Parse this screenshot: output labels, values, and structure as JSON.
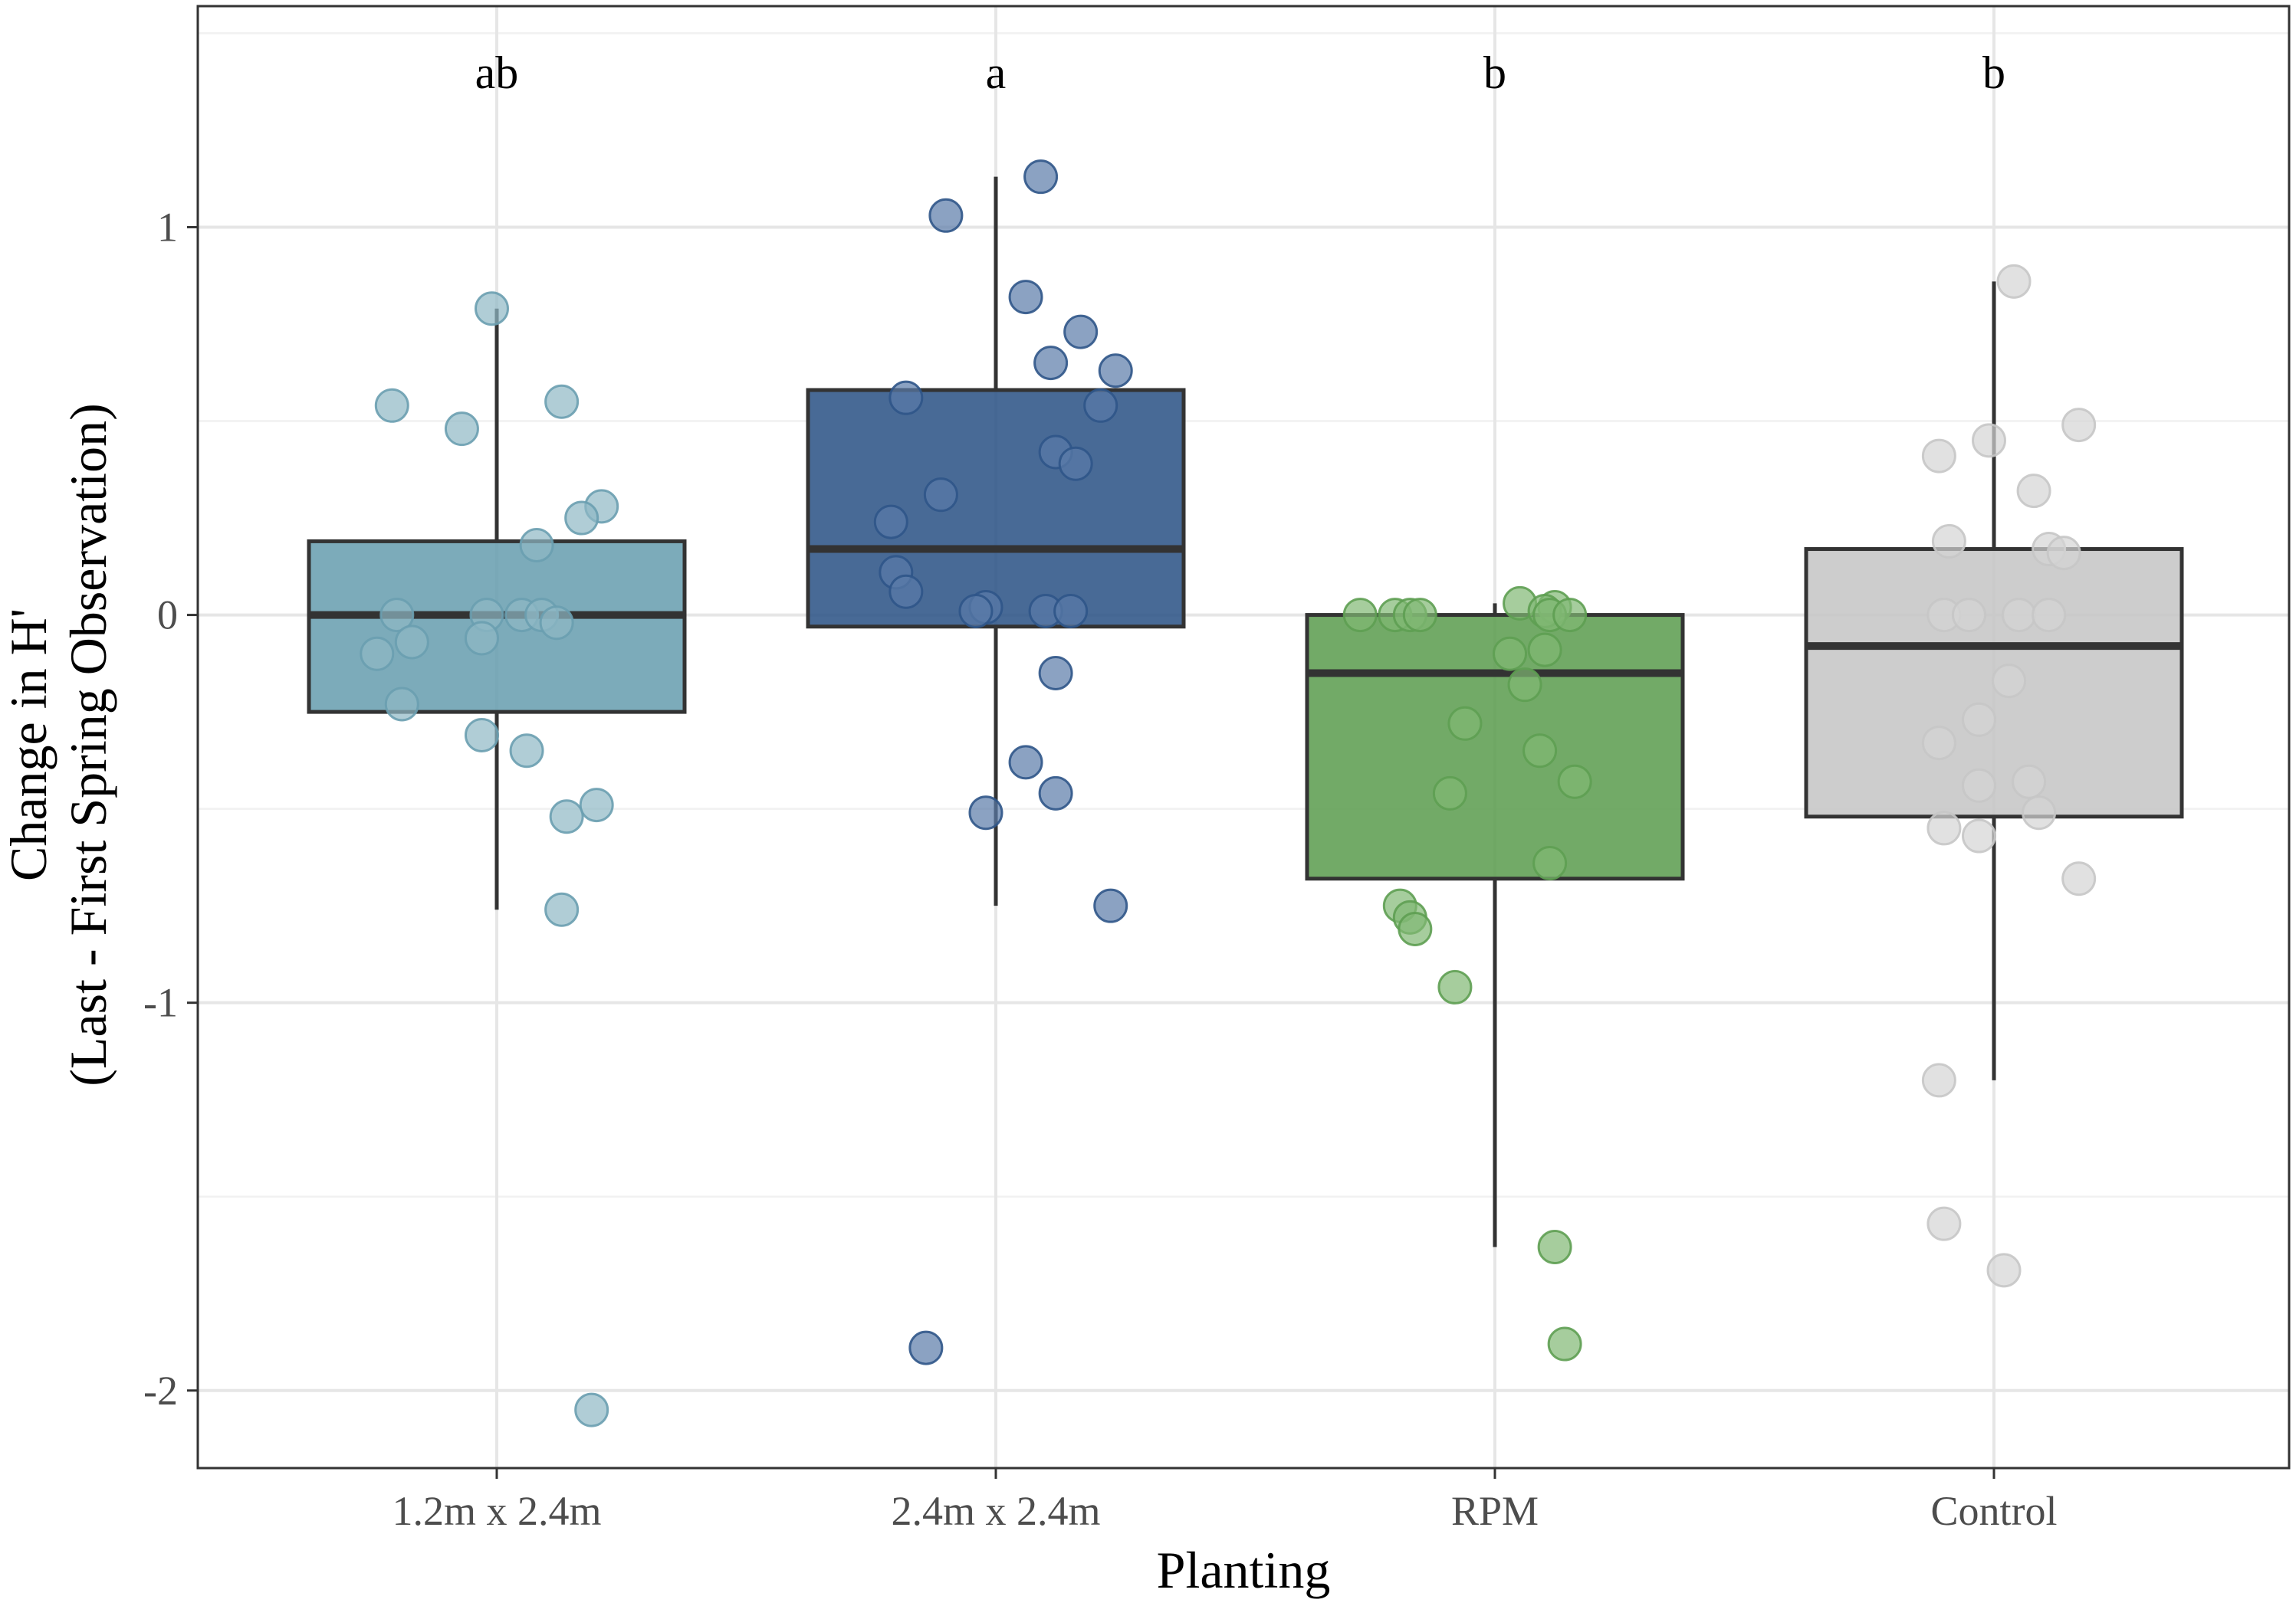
{
  "chart_data": {
    "type": "boxplot",
    "xlabel": "Planting",
    "ylabel_line1": "Change in H'",
    "ylabel_line2": "(Last - First Spring Observation)",
    "ylim": [
      -2.2,
      1.57
    ],
    "yticks": [
      -2,
      -1,
      0,
      1
    ],
    "ytick_labels": [
      "-2",
      "-1",
      "0",
      "1"
    ],
    "grid": true,
    "categories": [
      "1.2m x 2.4m",
      "2.4m x 2.4m",
      "RPM",
      "Control"
    ],
    "significance_letters": [
      "ab",
      "a",
      "b",
      "b"
    ],
    "groups": [
      {
        "name": "1.2m x 2.4m",
        "color": "#6a9fb0",
        "point_color": "#8fb8c5",
        "box": {
          "whisker_low": -0.76,
          "q1": -0.25,
          "median": 0.0,
          "q3": 0.19,
          "whisker_high": 0.79
        },
        "points": [
          {
            "j": -0.01,
            "y": 0.79
          },
          {
            "j": -0.21,
            "y": 0.54
          },
          {
            "j": 0.13,
            "y": 0.55
          },
          {
            "j": -0.07,
            "y": 0.48
          },
          {
            "j": 0.21,
            "y": 0.28
          },
          {
            "j": 0.17,
            "y": 0.25
          },
          {
            "j": 0.08,
            "y": 0.18
          },
          {
            "j": -0.2,
            "y": 0.0
          },
          {
            "j": -0.02,
            "y": 0.0
          },
          {
            "j": 0.05,
            "y": 0.0
          },
          {
            "j": 0.09,
            "y": 0.0
          },
          {
            "j": 0.12,
            "y": -0.02
          },
          {
            "j": -0.17,
            "y": -0.07
          },
          {
            "j": -0.24,
            "y": -0.1
          },
          {
            "j": -0.03,
            "y": -0.06
          },
          {
            "j": -0.19,
            "y": -0.23
          },
          {
            "j": -0.03,
            "y": -0.31
          },
          {
            "j": 0.06,
            "y": -0.35
          },
          {
            "j": 0.2,
            "y": -0.49
          },
          {
            "j": 0.14,
            "y": -0.52
          },
          {
            "j": 0.13,
            "y": -0.76
          },
          {
            "j": 0.19,
            "y": -2.05
          }
        ]
      },
      {
        "name": "2.4m x 2.4m",
        "color": "#2f5588",
        "point_color": "#5a7aa8",
        "box": {
          "whisker_low": -0.75,
          "q1": -0.03,
          "median": 0.17,
          "q3": 0.58,
          "whisker_high": 1.13
        },
        "points": [
          {
            "j": 0.09,
            "y": 1.13
          },
          {
            "j": -0.1,
            "y": 1.03
          },
          {
            "j": 0.06,
            "y": 0.82
          },
          {
            "j": 0.17,
            "y": 0.73
          },
          {
            "j": 0.11,
            "y": 0.65
          },
          {
            "j": 0.24,
            "y": 0.63
          },
          {
            "j": -0.18,
            "y": 0.56
          },
          {
            "j": 0.21,
            "y": 0.54
          },
          {
            "j": 0.12,
            "y": 0.42
          },
          {
            "j": 0.16,
            "y": 0.39
          },
          {
            "j": -0.11,
            "y": 0.31
          },
          {
            "j": -0.21,
            "y": 0.24
          },
          {
            "j": -0.2,
            "y": 0.11
          },
          {
            "j": -0.18,
            "y": 0.06
          },
          {
            "j": -0.02,
            "y": 0.02
          },
          {
            "j": -0.04,
            "y": 0.01
          },
          {
            "j": 0.1,
            "y": 0.01
          },
          {
            "j": 0.15,
            "y": 0.01
          },
          {
            "j": 0.12,
            "y": -0.15
          },
          {
            "j": 0.06,
            "y": -0.38
          },
          {
            "j": 0.12,
            "y": -0.46
          },
          {
            "j": -0.02,
            "y": -0.51
          },
          {
            "j": 0.23,
            "y": -0.75
          },
          {
            "j": -0.14,
            "y": -1.89
          }
        ]
      },
      {
        "name": "RPM",
        "color": "#5e9e52",
        "point_color": "#80b873",
        "box": {
          "whisker_low": -1.63,
          "q1": -0.68,
          "median": -0.15,
          "q3": 0.0,
          "whisker_high": 0.03
        },
        "points": [
          {
            "j": 0.05,
            "y": 0.03
          },
          {
            "j": 0.12,
            "y": 0.02
          },
          {
            "j": 0.1,
            "y": 0.01
          },
          {
            "j": -0.27,
            "y": 0.0
          },
          {
            "j": -0.2,
            "y": 0.0
          },
          {
            "j": -0.17,
            "y": 0.0
          },
          {
            "j": -0.15,
            "y": 0.0
          },
          {
            "j": 0.11,
            "y": 0.0
          },
          {
            "j": 0.15,
            "y": 0.0
          },
          {
            "j": 0.03,
            "y": -0.1
          },
          {
            "j": 0.1,
            "y": -0.09
          },
          {
            "j": 0.06,
            "y": -0.18
          },
          {
            "j": -0.06,
            "y": -0.28
          },
          {
            "j": 0.09,
            "y": -0.35
          },
          {
            "j": 0.16,
            "y": -0.43
          },
          {
            "j": -0.09,
            "y": -0.46
          },
          {
            "j": 0.11,
            "y": -0.64
          },
          {
            "j": -0.19,
            "y": -0.75
          },
          {
            "j": -0.17,
            "y": -0.78
          },
          {
            "j": -0.16,
            "y": -0.81
          },
          {
            "j": -0.08,
            "y": -0.96
          },
          {
            "j": 0.12,
            "y": -1.63
          },
          {
            "j": 0.14,
            "y": -1.88
          }
        ]
      },
      {
        "name": "Control",
        "color": "#c6c6c6",
        "point_color": "#d4d4d4",
        "box": {
          "whisker_low": -1.2,
          "q1": -0.52,
          "median": -0.08,
          "q3": 0.17,
          "whisker_high": 0.86
        },
        "points": [
          {
            "j": 0.04,
            "y": 0.86
          },
          {
            "j": -0.11,
            "y": 0.41
          },
          {
            "j": -0.01,
            "y": 0.45
          },
          {
            "j": 0.17,
            "y": 0.49
          },
          {
            "j": 0.08,
            "y": 0.32
          },
          {
            "j": -0.09,
            "y": 0.19
          },
          {
            "j": 0.11,
            "y": 0.17
          },
          {
            "j": 0.14,
            "y": 0.16
          },
          {
            "j": -0.1,
            "y": 0.0
          },
          {
            "j": -0.05,
            "y": 0.0
          },
          {
            "j": 0.05,
            "y": 0.0
          },
          {
            "j": 0.11,
            "y": 0.0
          },
          {
            "j": 0.03,
            "y": -0.17
          },
          {
            "j": -0.03,
            "y": -0.27
          },
          {
            "j": -0.11,
            "y": -0.33
          },
          {
            "j": -0.03,
            "y": -0.44
          },
          {
            "j": 0.07,
            "y": -0.43
          },
          {
            "j": 0.09,
            "y": -0.51
          },
          {
            "j": -0.1,
            "y": -0.55
          },
          {
            "j": -0.03,
            "y": -0.57
          },
          {
            "j": 0.17,
            "y": -0.68
          },
          {
            "j": -0.11,
            "y": -1.2
          },
          {
            "j": -0.1,
            "y": -1.57
          },
          {
            "j": 0.02,
            "y": -1.69
          }
        ]
      }
    ]
  }
}
